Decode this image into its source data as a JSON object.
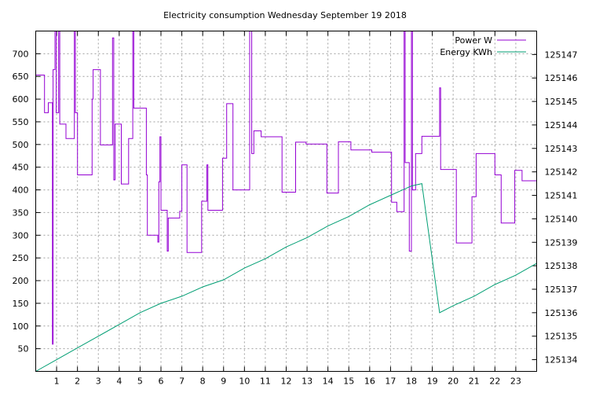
{
  "chart_data": {
    "type": "line",
    "title": "Electricity consumption Wednesday September 19 2018",
    "x_ticks": [
      1,
      2,
      3,
      4,
      5,
      6,
      7,
      8,
      9,
      10,
      11,
      12,
      13,
      14,
      15,
      16,
      17,
      18,
      19,
      20,
      21,
      22,
      23
    ],
    "xlim": [
      0,
      24
    ],
    "y_ticks": [
      50,
      100,
      150,
      200,
      250,
      300,
      350,
      400,
      450,
      500,
      550,
      600,
      650,
      700
    ],
    "ylim": [
      0,
      750
    ],
    "y2_ticks": [
      125134,
      125135,
      125136,
      125137,
      125138,
      125139,
      125140,
      125141,
      125142,
      125143,
      125144,
      125145,
      125146,
      125147
    ],
    "y2lim": [
      125133.5,
      125148
    ],
    "grid": true,
    "legend_position": "top-right",
    "colors": {
      "power": "#9400d3",
      "energy": "#009e73"
    },
    "series": [
      {
        "name": "Power W",
        "axis": "left",
        "points": [
          [
            0,
            653
          ],
          [
            0.42,
            653
          ],
          [
            0.42,
            570
          ],
          [
            0.6,
            570
          ],
          [
            0.6,
            592
          ],
          [
            0.8,
            592
          ],
          [
            0.8,
            60
          ],
          [
            0.83,
            60
          ],
          [
            0.83,
            665
          ],
          [
            0.92,
            665
          ],
          [
            0.92,
            750
          ],
          [
            0.98,
            750
          ],
          [
            0.98,
            570
          ],
          [
            1.1,
            570
          ],
          [
            1.1,
            750
          ],
          [
            1.15,
            750
          ],
          [
            1.15,
            545
          ],
          [
            1.45,
            545
          ],
          [
            1.45,
            513
          ],
          [
            1.85,
            513
          ],
          [
            1.85,
            750
          ],
          [
            1.9,
            750
          ],
          [
            1.9,
            570
          ],
          [
            2.0,
            570
          ],
          [
            2.0,
            433
          ],
          [
            2.7,
            433
          ],
          [
            2.7,
            600
          ],
          [
            2.75,
            600
          ],
          [
            2.75,
            665
          ],
          [
            3.1,
            665
          ],
          [
            3.1,
            499
          ],
          [
            3.68,
            499
          ],
          [
            3.68,
            735
          ],
          [
            3.74,
            735
          ],
          [
            3.74,
            422
          ],
          [
            3.8,
            422
          ],
          [
            3.8,
            545
          ],
          [
            4.1,
            545
          ],
          [
            4.1,
            413
          ],
          [
            4.45,
            413
          ],
          [
            4.45,
            513
          ],
          [
            4.65,
            513
          ],
          [
            4.65,
            750
          ],
          [
            4.7,
            750
          ],
          [
            4.7,
            580
          ],
          [
            5.3,
            580
          ],
          [
            5.3,
            433
          ],
          [
            5.35,
            433
          ],
          [
            5.35,
            300
          ],
          [
            5.85,
            300
          ],
          [
            5.85,
            285
          ],
          [
            5.9,
            285
          ],
          [
            5.9,
            418
          ],
          [
            5.95,
            418
          ],
          [
            5.95,
            517
          ],
          [
            6.0,
            517
          ],
          [
            6.0,
            355
          ],
          [
            6.3,
            355
          ],
          [
            6.3,
            265
          ],
          [
            6.35,
            265
          ],
          [
            6.35,
            338
          ],
          [
            6.9,
            338
          ],
          [
            6.9,
            353
          ],
          [
            7.0,
            353
          ],
          [
            7.0,
            455
          ],
          [
            7.25,
            455
          ],
          [
            7.25,
            262
          ],
          [
            7.95,
            262
          ],
          [
            7.95,
            375
          ],
          [
            8.2,
            375
          ],
          [
            8.2,
            455
          ],
          [
            8.25,
            455
          ],
          [
            8.25,
            355
          ],
          [
            8.95,
            355
          ],
          [
            8.95,
            470
          ],
          [
            9.15,
            470
          ],
          [
            9.15,
            590
          ],
          [
            9.45,
            590
          ],
          [
            9.45,
            400
          ],
          [
            10.25,
            400
          ],
          [
            10.25,
            750
          ],
          [
            10.35,
            750
          ],
          [
            10.35,
            480
          ],
          [
            10.45,
            480
          ],
          [
            10.45,
            530
          ],
          [
            10.8,
            530
          ],
          [
            10.8,
            517
          ],
          [
            11.8,
            517
          ],
          [
            11.8,
            395
          ],
          [
            12.45,
            395
          ],
          [
            12.45,
            505
          ],
          [
            12.95,
            505
          ],
          [
            12.95,
            501
          ],
          [
            13.95,
            501
          ],
          [
            13.95,
            393
          ],
          [
            14.5,
            393
          ],
          [
            14.5,
            506
          ],
          [
            15.1,
            506
          ],
          [
            15.1,
            488
          ],
          [
            16.1,
            488
          ],
          [
            16.1,
            483
          ],
          [
            17.05,
            483
          ],
          [
            17.05,
            373
          ],
          [
            17.3,
            373
          ],
          [
            17.3,
            352
          ],
          [
            17.65,
            352
          ],
          [
            17.65,
            750
          ],
          [
            17.7,
            750
          ],
          [
            17.7,
            460
          ],
          [
            17.9,
            460
          ],
          [
            17.9,
            265
          ],
          [
            18.0,
            265
          ],
          [
            18.0,
            750
          ],
          [
            18.05,
            750
          ],
          [
            18.05,
            400
          ],
          [
            18.2,
            400
          ],
          [
            18.2,
            480
          ],
          [
            18.5,
            480
          ],
          [
            18.5,
            518
          ],
          [
            19.35,
            518
          ],
          [
            19.35,
            625
          ],
          [
            19.4,
            625
          ],
          [
            19.4,
            445
          ],
          [
            20.15,
            445
          ],
          [
            20.15,
            283
          ],
          [
            20.9,
            283
          ],
          [
            20.9,
            385
          ],
          [
            21.1,
            385
          ],
          [
            21.1,
            480
          ],
          [
            22.0,
            480
          ],
          [
            22.0,
            433
          ],
          [
            22.3,
            433
          ],
          [
            22.3,
            327
          ],
          [
            22.95,
            327
          ],
          [
            22.95,
            443
          ],
          [
            23.3,
            443
          ],
          [
            23.3,
            420
          ],
          [
            24,
            420
          ]
        ]
      },
      {
        "name": "Energy KWh",
        "axis": "right",
        "points": [
          [
            0,
            125133.5
          ],
          [
            1,
            125134.0
          ],
          [
            2,
            125134.5
          ],
          [
            3,
            125135.0
          ],
          [
            4,
            125135.5
          ],
          [
            5,
            125136.0
          ],
          [
            6,
            125136.4
          ],
          [
            7,
            125136.7
          ],
          [
            8,
            125137.1
          ],
          [
            9,
            125137.4
          ],
          [
            10,
            125137.9
          ],
          [
            11,
            125138.3
          ],
          [
            12,
            125138.8
          ],
          [
            13,
            125139.2
          ],
          [
            14,
            125139.7
          ],
          [
            15,
            125140.1
          ],
          [
            16,
            125140.6
          ],
          [
            17,
            125141.0
          ],
          [
            18,
            125141.4
          ],
          [
            18.5,
            125141.5
          ],
          [
            19.35,
            125136.0
          ],
          [
            20,
            125136.3
          ],
          [
            21,
            125136.7
          ],
          [
            22,
            125137.2
          ],
          [
            23,
            125137.6
          ],
          [
            24,
            125138.1
          ]
        ]
      }
    ]
  }
}
